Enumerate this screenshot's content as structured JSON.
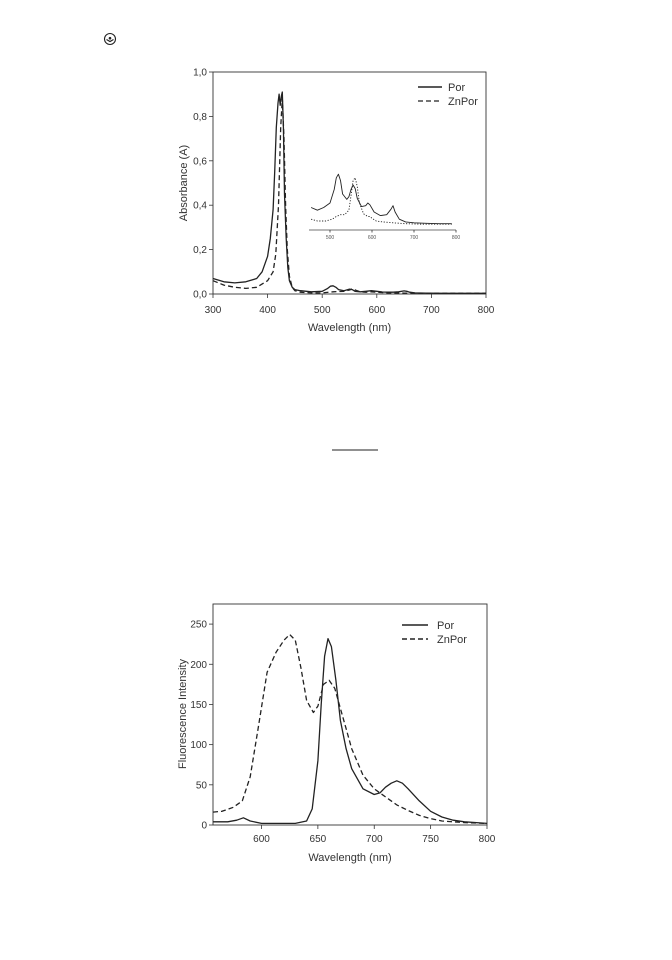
{
  "page": {
    "corner_icon": "circle-arrow-icon"
  },
  "chart_data": [
    {
      "type": "line",
      "title": "",
      "xlabel": "Wavelength (nm)",
      "ylabel": "Absorbance (A)",
      "xlim": [
        300,
        800
      ],
      "ylim": [
        0,
        1.0
      ],
      "xticks": [
        "300",
        "400",
        "500",
        "600",
        "700",
        "800"
      ],
      "yticks": [
        "0,0",
        "0,2",
        "0,4",
        "0,6",
        "0,8",
        "1,0"
      ],
      "legend_position": "top-right",
      "grid": false,
      "series": [
        {
          "name": "Por",
          "style": "solid",
          "x": [
            300,
            320,
            340,
            360,
            380,
            390,
            400,
            405,
            410,
            413,
            416,
            419,
            421,
            423,
            425,
            427,
            429,
            431,
            434,
            437,
            440,
            445,
            450,
            460,
            480,
            500,
            510,
            515,
            520,
            525,
            530,
            540,
            550,
            555,
            560,
            570,
            580,
            590,
            600,
            610,
            620,
            630,
            640,
            650,
            655,
            660,
            670,
            690,
            720,
            750,
            800
          ],
          "y": [
            0.07,
            0.055,
            0.05,
            0.055,
            0.07,
            0.1,
            0.17,
            0.25,
            0.38,
            0.55,
            0.75,
            0.86,
            0.9,
            0.85,
            0.89,
            0.91,
            0.75,
            0.45,
            0.25,
            0.12,
            0.06,
            0.03,
            0.02,
            0.015,
            0.01,
            0.012,
            0.025,
            0.035,
            0.037,
            0.03,
            0.02,
            0.015,
            0.022,
            0.02,
            0.012,
            0.01,
            0.012,
            0.015,
            0.012,
            0.009,
            0.008,
            0.008,
            0.01,
            0.014,
            0.012,
            0.008,
            0.005,
            0.004,
            0.003,
            0.003,
            0.003
          ]
        },
        {
          "name": "ZnPor",
          "style": "dashed",
          "x": [
            300,
            320,
            340,
            360,
            380,
            400,
            410,
            415,
            420,
            424,
            427,
            430,
            433,
            436,
            440,
            445,
            450,
            460,
            480,
            500,
            520,
            540,
            550,
            556,
            562,
            570,
            580,
            590,
            600,
            620,
            650,
            700,
            750,
            800
          ],
          "y": [
            0.06,
            0.04,
            0.03,
            0.025,
            0.03,
            0.06,
            0.1,
            0.18,
            0.4,
            0.75,
            0.88,
            0.7,
            0.4,
            0.2,
            0.08,
            0.03,
            0.015,
            0.008,
            0.005,
            0.005,
            0.01,
            0.012,
            0.018,
            0.024,
            0.016,
            0.01,
            0.008,
            0.01,
            0.008,
            0.005,
            0.004,
            0.003,
            0.003,
            0.003
          ]
        }
      ],
      "inset": {
        "xlim": [
          450,
          800
        ],
        "xticks": [
          "500",
          "600",
          "700",
          "800"
        ],
        "series": [
          {
            "name": "Por",
            "style": "solid",
            "x": [
              455,
              470,
              485,
              500,
              510,
              515,
              520,
              525,
              530,
              540,
              545,
              550,
              555,
              560,
              565,
              575,
              585,
              590,
              595,
              605,
              620,
              635,
              645,
              650,
              655,
              665,
              680,
              700,
              730,
              760,
              790
            ],
            "y": [
              0.25,
              0.22,
              0.25,
              0.3,
              0.45,
              0.58,
              0.62,
              0.55,
              0.4,
              0.34,
              0.37,
              0.45,
              0.5,
              0.46,
              0.35,
              0.26,
              0.27,
              0.3,
              0.28,
              0.2,
              0.16,
              0.17,
              0.23,
              0.27,
              0.2,
              0.12,
              0.09,
              0.08,
              0.075,
              0.07,
              0.07
            ]
          },
          {
            "name": "ZnPor",
            "style": "dotted",
            "x": [
              455,
              470,
              490,
              505,
              515,
              525,
              535,
              545,
              550,
              555,
              560,
              565,
              570,
              580,
              590,
              595,
              600,
              610,
              625,
              650,
              680,
              720,
              760,
              790
            ],
            "y": [
              0.12,
              0.1,
              0.1,
              0.12,
              0.15,
              0.17,
              0.17,
              0.22,
              0.38,
              0.55,
              0.58,
              0.48,
              0.3,
              0.18,
              0.15,
              0.15,
              0.13,
              0.1,
              0.09,
              0.08,
              0.07,
              0.065,
              0.065,
              0.065
            ]
          }
        ]
      }
    },
    {
      "type": "line",
      "title": "",
      "xlabel": "Wavelength (nm)",
      "ylabel": "Fluorescence Intensity",
      "xlim": [
        557,
        800
      ],
      "ylim": [
        0,
        275
      ],
      "xticks": [
        "600",
        "650",
        "700",
        "750",
        "800"
      ],
      "yticks": [
        "0",
        "50",
        "100",
        "150",
        "200",
        "250"
      ],
      "legend_position": "top-right",
      "grid": false,
      "series": [
        {
          "name": "Por",
          "style": "solid",
          "x": [
            557,
            570,
            578,
            584,
            590,
            600,
            615,
            630,
            640,
            645,
            650,
            653,
            656,
            659,
            662,
            666,
            670,
            675,
            680,
            690,
            700,
            705,
            710,
            715,
            720,
            725,
            730,
            740,
            750,
            760,
            770,
            780,
            800
          ],
          "y": [
            4,
            4,
            6,
            9,
            5,
            2,
            2,
            2,
            5,
            20,
            80,
            150,
            210,
            232,
            222,
            180,
            130,
            95,
            70,
            45,
            38,
            40,
            47,
            52,
            55,
            52,
            45,
            30,
            17,
            10,
            6,
            4,
            2
          ]
        },
        {
          "name": "ZnPor",
          "style": "dashed",
          "x": [
            557,
            565,
            575,
            583,
            590,
            597,
            605,
            613,
            620,
            625,
            630,
            635,
            640,
            646,
            650,
            655,
            660,
            665,
            670,
            675,
            680,
            690,
            700,
            710,
            720,
            730,
            740,
            750,
            760,
            770,
            780,
            800
          ],
          "y": [
            16,
            17,
            22,
            30,
            60,
            120,
            190,
            215,
            230,
            237,
            230,
            195,
            155,
            140,
            148,
            175,
            180,
            170,
            145,
            120,
            95,
            62,
            45,
            35,
            25,
            18,
            12,
            8,
            5,
            4,
            3,
            2
          ]
        }
      ]
    }
  ]
}
